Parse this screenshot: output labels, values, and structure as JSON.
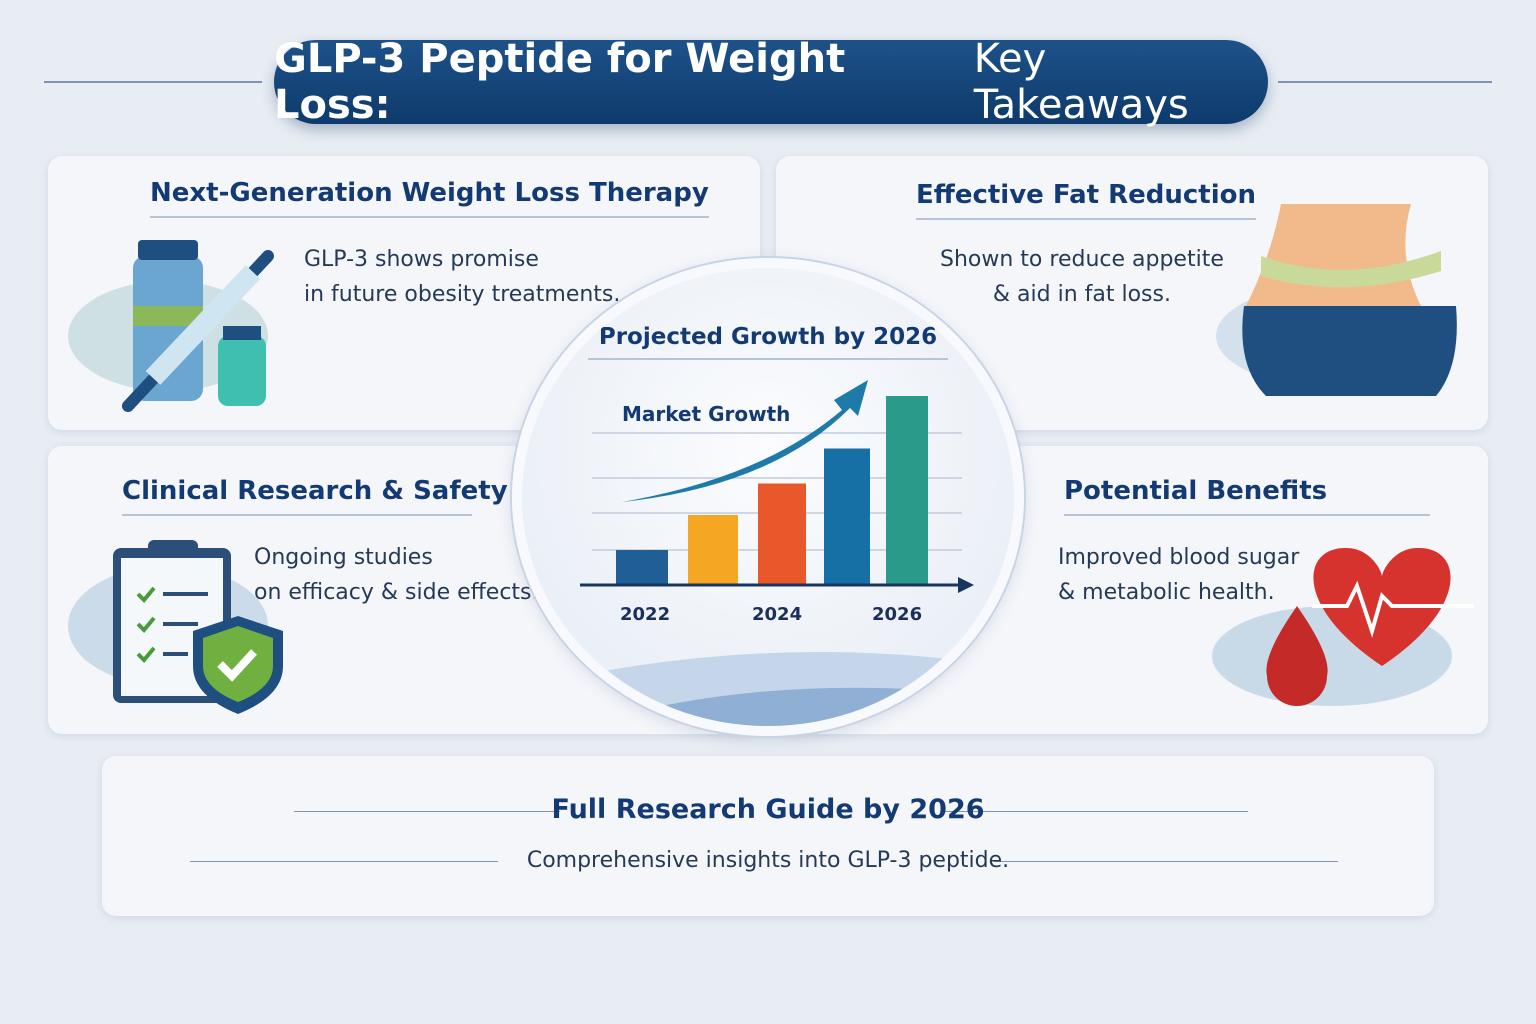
{
  "header": {
    "title_bold": "GLP-3 Peptide for Weight Loss:",
    "title_light": "Key Takeaways"
  },
  "cards": [
    {
      "title": "Next-Generation Weight Loss Therapy",
      "lines": [
        "GLP-3 shows promise",
        "in future obesity treatments."
      ],
      "icon": "vial-syringe-icon"
    },
    {
      "title": "Effective Fat Reduction",
      "lines": [
        "Shown to reduce appetite",
        "& aid in fat loss."
      ],
      "icon": "waist-measuring-tape-icon"
    },
    {
      "title": "Clinical Research & Safety",
      "lines": [
        "Ongoing studies",
        "on efficacy & side effects."
      ],
      "icon": "clipboard-shield-icon"
    },
    {
      "title": "Potential Benefits",
      "lines": [
        "Improved blood sugar",
        "& metabolic health."
      ],
      "icon": "heart-blood-drop-icon"
    }
  ],
  "center": {
    "title": "Projected Growth by 2026"
  },
  "chart_data": {
    "type": "bar",
    "title": "Market Growth",
    "x_tick_labels": [
      "2022",
      "2024",
      "2026"
    ],
    "values": [
      1,
      2,
      2.9,
      3.9,
      5.4
    ],
    "colors": [
      "#1f5f96",
      "#f5a623",
      "#e8582a",
      "#1670a6",
      "#2a9a8a"
    ],
    "trend_arrow": "upward",
    "grid": true
  },
  "footer": {
    "title": "Full Research Guide by 2026",
    "subtitle": "Comprehensive insights into GLP-3 peptide."
  }
}
